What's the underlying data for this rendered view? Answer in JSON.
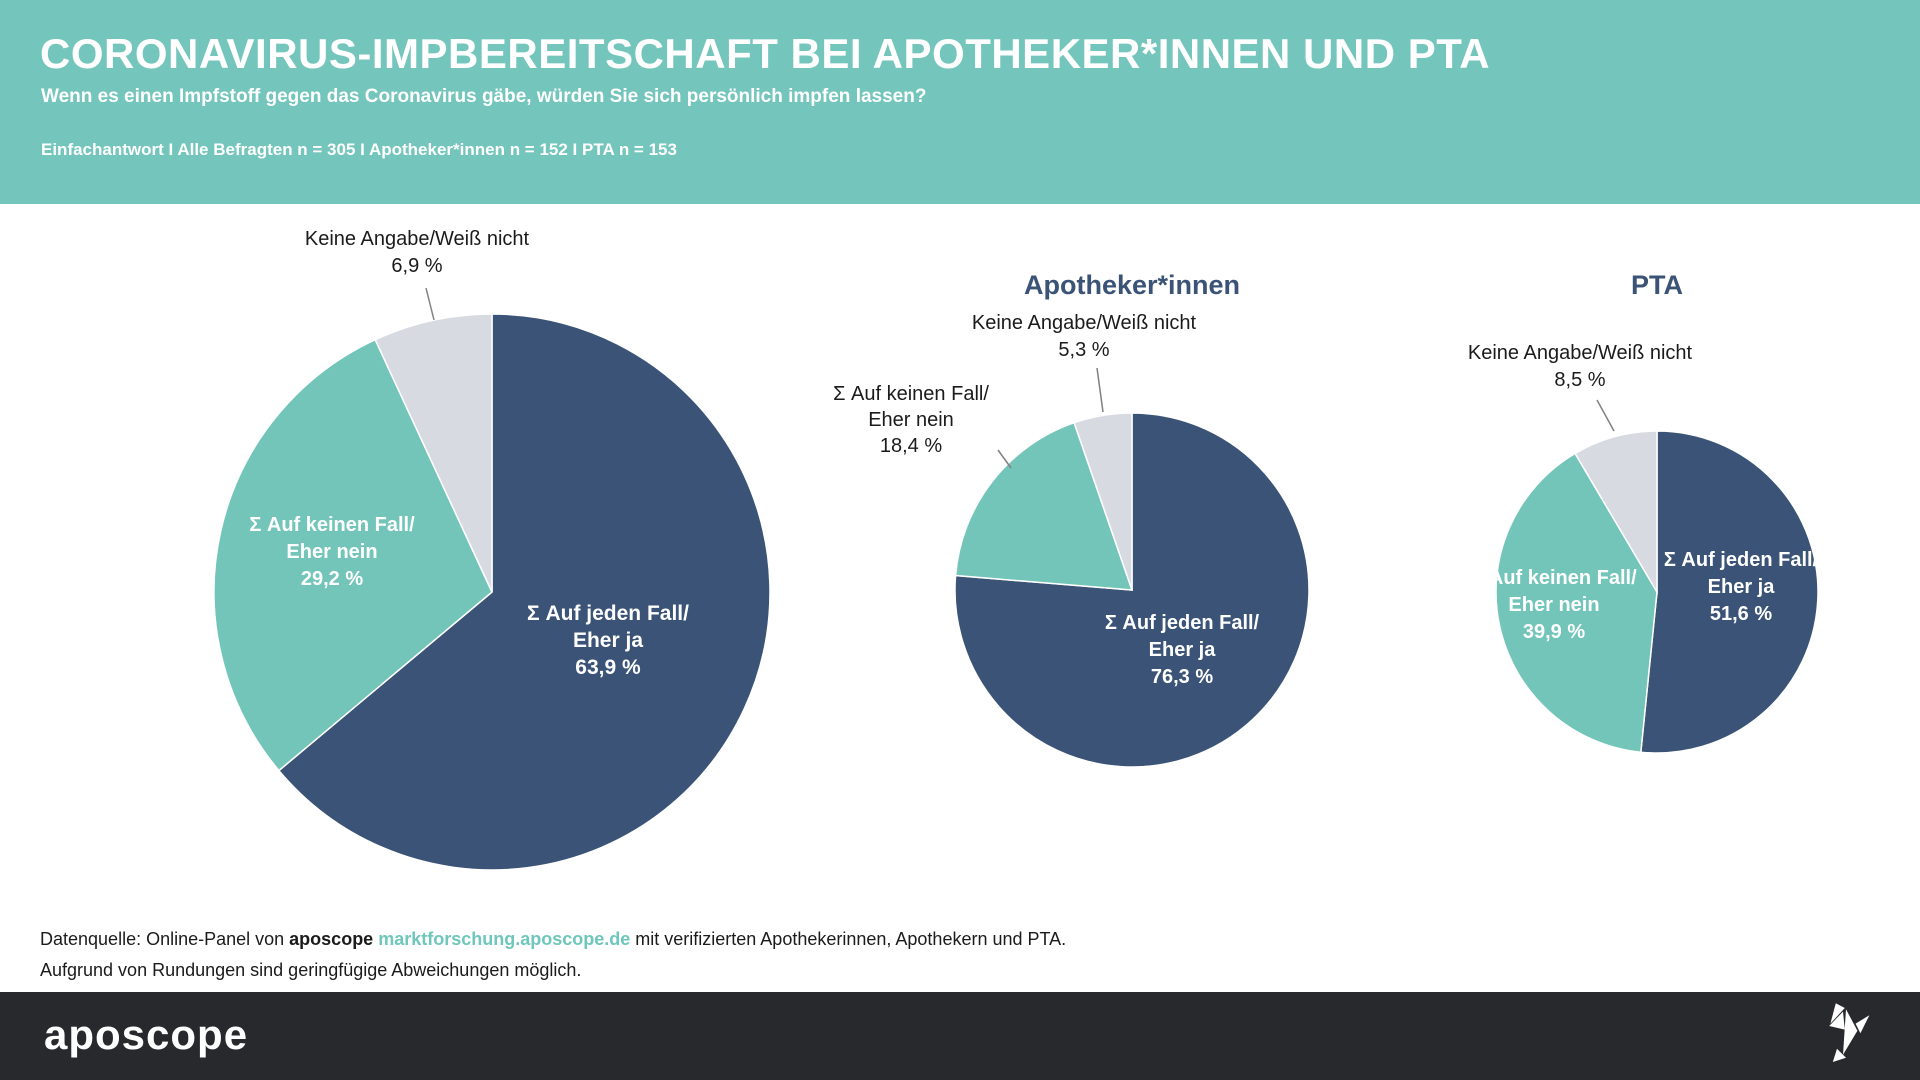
{
  "header": {
    "title": "CORONAVIRUS-IMPBEREITSCHAFT BEI APOTHEKER*INNEN UND PTA",
    "subtitle": "Wenn es einen Impfstoff gegen das Coronavirus gäbe, würden Sie sich persönlich impfen lassen?",
    "sample_info": "Einfachantwort I Alle Befragten n = 305 I Apotheker*innen n = 152 I PTA n = 153"
  },
  "colors": {
    "header_teal": "#74C6BC",
    "dark_blue": "#3A5376",
    "teal": "#73C5B9",
    "grey": "#D8DAE1",
    "footer_dark": "#27292C",
    "link_teal": "#6FC7BC",
    "leader_line": "#808080"
  },
  "chart_data": [
    {
      "type": "pie",
      "title": "",
      "start_angle_deg": 0,
      "direction": "clockwise",
      "unit": "%",
      "slices": [
        {
          "label": "Σ Auf jeden Fall/\nEher ja",
          "value": 63.9,
          "display": "63,9 %",
          "color": "dark_blue",
          "label_position": "inside"
        },
        {
          "label": "Σ Auf keinen Fall/\nEher nein",
          "value": 29.2,
          "display": "29,2 %",
          "color": "teal",
          "label_position": "inside"
        },
        {
          "label": "Keine Angabe/Weiß nicht",
          "value": 6.9,
          "display": "6,9 %",
          "color": "grey",
          "label_position": "outside"
        }
      ]
    },
    {
      "type": "pie",
      "title": "Apotheker*innen",
      "start_angle_deg": 0,
      "direction": "clockwise",
      "unit": "%",
      "slices": [
        {
          "label": "Σ Auf jeden Fall/\nEher ja",
          "value": 76.3,
          "display": "76,3 %",
          "color": "dark_blue",
          "label_position": "inside"
        },
        {
          "label": "Σ Auf keinen Fall/\nEher nein",
          "value": 18.4,
          "display": "18,4 %",
          "color": "teal",
          "label_position": "outside"
        },
        {
          "label": "Keine Angabe/Weiß nicht",
          "value": 5.3,
          "display": "5,3 %",
          "color": "grey",
          "label_position": "outside"
        }
      ]
    },
    {
      "type": "pie",
      "title": "PTA",
      "start_angle_deg": 0,
      "direction": "clockwise",
      "unit": "%",
      "slices": [
        {
          "label": "Σ Auf jeden Fall/\nEher ja",
          "value": 51.6,
          "display": "51,6 %",
          "color": "dark_blue",
          "label_position": "inside"
        },
        {
          "label": "Σ Auf keinen Fall/\nEher nein",
          "value": 39.9,
          "display": "39,9 %",
          "color": "teal",
          "label_position": "inside"
        },
        {
          "label": "Keine Angabe/Weiß nicht",
          "value": 8.5,
          "display": "8,5 %",
          "color": "grey",
          "label_position": "outside"
        }
      ]
    }
  ],
  "footer": {
    "source_prefix": "Datenquelle: Online-Panel von",
    "source_brand": "aposcope",
    "source_link": "marktforschung.aposcope.de",
    "source_suffix": "mit verifizierten Apothekerinnen, Apothekern und PTA.",
    "note": "Aufgrund von Rundungen sind geringfügige Abweichungen möglich.",
    "logo_text": "aposcope"
  }
}
